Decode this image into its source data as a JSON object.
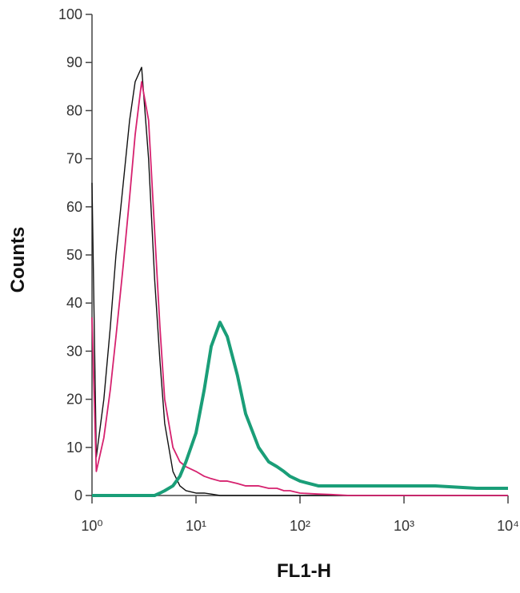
{
  "chart_data": {
    "type": "line",
    "x_label": "FL1-H",
    "y_label": "Counts",
    "log_x": true,
    "xlim": [
      1,
      10000
    ],
    "xticks": [
      {
        "value": 1,
        "label": "10⁰"
      },
      {
        "value": 10,
        "label": "10¹"
      },
      {
        "value": 100,
        "label": "10²"
      },
      {
        "value": 1000,
        "label": "10³"
      },
      {
        "value": 10000,
        "label": "10⁴"
      }
    ],
    "ylim": [
      0,
      100
    ],
    "yticks": [
      0,
      10,
      20,
      30,
      40,
      50,
      60,
      70,
      80,
      90,
      100
    ],
    "x": [
      1,
      1.1,
      1.3,
      1.5,
      1.7,
      2,
      2.3,
      2.6,
      3,
      3.5,
      4,
      4.5,
      5,
      6,
      7,
      8,
      10,
      12,
      14,
      17,
      20,
      25,
      30,
      40,
      50,
      60,
      70,
      80,
      100,
      150,
      200,
      300,
      500,
      1000,
      2000,
      5000,
      10000
    ],
    "series": [
      {
        "color": "#111111",
        "values": [
          65,
          8,
          20,
          35,
          50,
          65,
          78,
          86,
          89,
          70,
          45,
          28,
          15,
          5,
          2,
          1,
          0.5,
          0.5,
          0.3,
          0,
          0,
          0,
          0,
          0,
          0,
          0,
          0,
          0,
          0,
          0,
          0,
          0,
          0,
          0,
          0,
          0,
          0
        ]
      },
      {
        "color": "#d6226f",
        "values": [
          37,
          5,
          12,
          22,
          33,
          48,
          62,
          75,
          86,
          78,
          55,
          35,
          20,
          10,
          7,
          6,
          5,
          4,
          3.5,
          3,
          3,
          2.5,
          2,
          2,
          1.5,
          1.5,
          1,
          1,
          0.5,
          0.3,
          0.2,
          0,
          0,
          0,
          0,
          0,
          0
        ]
      },
      {
        "color": "#1a9e78",
        "values": [
          0,
          0,
          0,
          0,
          0,
          0,
          0,
          0,
          0,
          0,
          0,
          0.5,
          1,
          2,
          4,
          7,
          13,
          22,
          31,
          36,
          33,
          25,
          17,
          10,
          7,
          6,
          5,
          4,
          3,
          2,
          2,
          2,
          2,
          2,
          2,
          1.5,
          1.5
        ]
      }
    ]
  }
}
